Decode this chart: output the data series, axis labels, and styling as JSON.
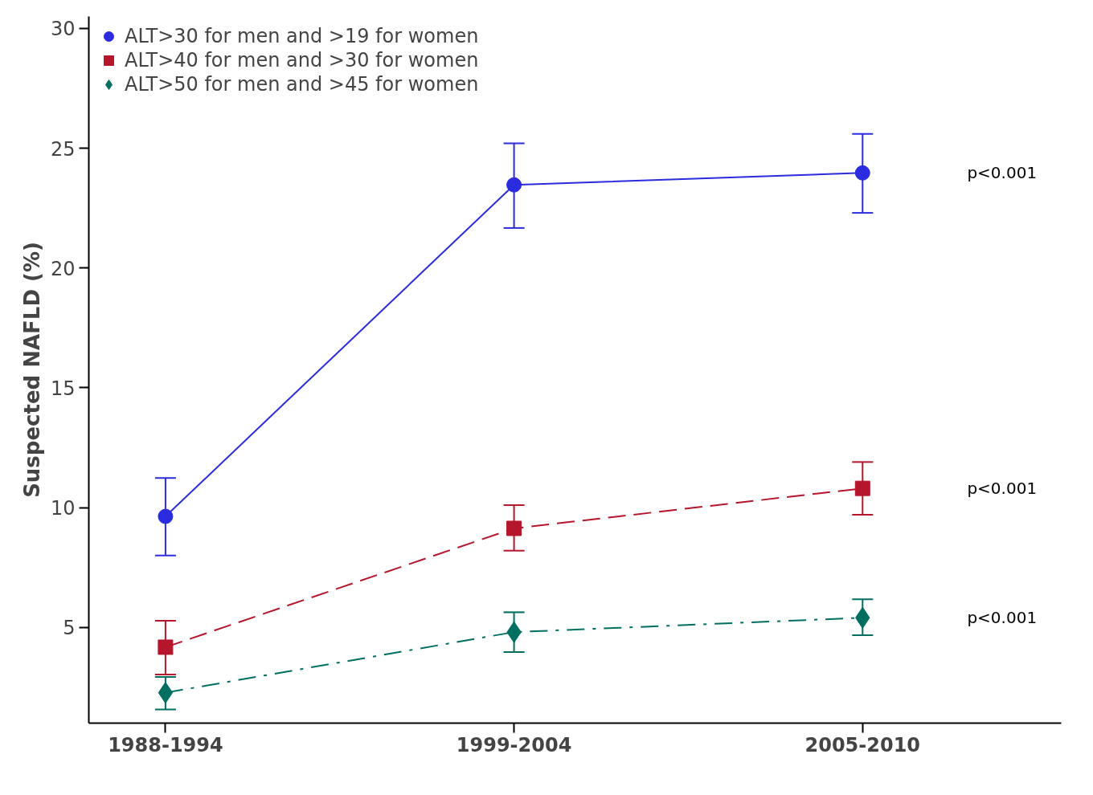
{
  "chart_data": {
    "type": "line",
    "ylabel": "Suspected NAFLD (%)",
    "categories": [
      "1988-1994",
      "1999-2004",
      "2005-2010"
    ],
    "series": [
      {
        "name": "ALT>30 for men and >19 for women",
        "color": "#2b2bdf",
        "marker": "circle",
        "line_style": "solid",
        "values": [
          9.63,
          23.47,
          23.97
        ],
        "errors": [
          [
            8.0,
            11.23
          ],
          [
            21.67,
            25.2
          ],
          [
            22.3,
            25.6
          ]
        ]
      },
      {
        "name": "ALT>40 for men and >30 for women",
        "color": "#b5162b",
        "marker": "square",
        "line_style": "dashed",
        "values": [
          4.17,
          9.13,
          10.8
        ],
        "errors": [
          [
            3.03,
            5.27
          ],
          [
            8.2,
            10.1
          ],
          [
            9.7,
            11.9
          ]
        ]
      },
      {
        "name": "ALT>50 for men and >45 for women",
        "color": "#006e60",
        "marker": "diamond",
        "line_style": "dashdot",
        "values": [
          2.27,
          4.8,
          5.4
        ],
        "errors": [
          [
            1.57,
            2.93
          ],
          [
            3.97,
            5.63
          ],
          [
            4.67,
            6.17
          ]
        ]
      }
    ],
    "annotations": [
      "p<0.001",
      "p<0.001",
      "p<0.001"
    ],
    "ylim": [
      1,
      30.5
    ],
    "yticks": [
      5,
      10,
      15,
      20,
      25,
      30
    ],
    "grid": false,
    "legend": "top left"
  }
}
